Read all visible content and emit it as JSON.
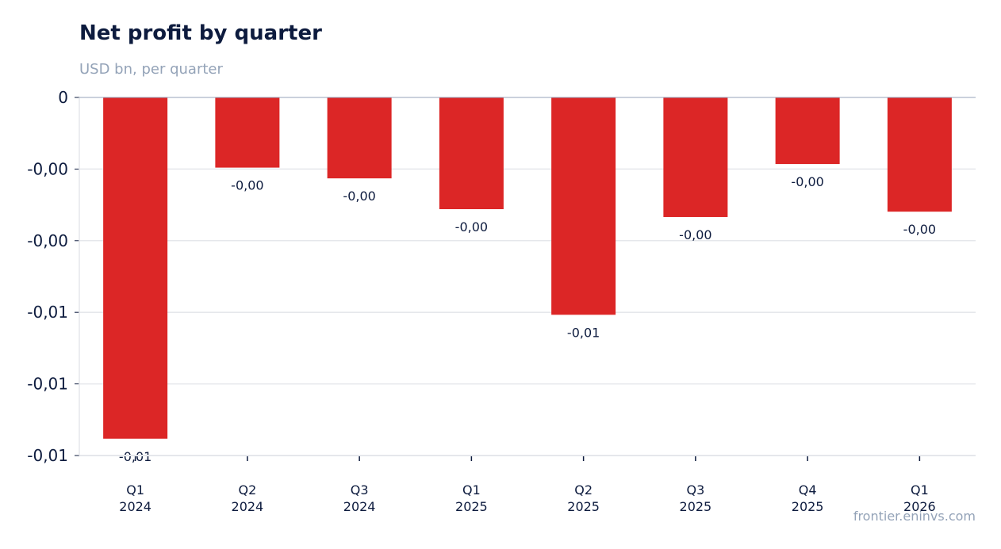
{
  "title": "Net profit by quarter",
  "subtitle": "USD bn, per quarter",
  "source": "frontier.eninvs.com",
  "colors": {
    "bar": "#dc2626",
    "title": "#0d1b3e",
    "muted": "#94a3b8",
    "grid": "#e5e7eb",
    "text": "#0d1b3e"
  },
  "chart_data": {
    "type": "bar",
    "title": "Net profit by quarter",
    "subtitle": "USD bn, per quarter",
    "xlabel": "",
    "ylabel": "",
    "categories": [
      "Q1 2024",
      "Q2 2024",
      "Q3 2024",
      "Q1 2025",
      "Q2 2025",
      "Q3 2025",
      "Q4 2025",
      "Q1 2026"
    ],
    "category_lines": [
      [
        "Q1",
        "2024"
      ],
      [
        "Q2",
        "2024"
      ],
      [
        "Q3",
        "2024"
      ],
      [
        "Q1",
        "2025"
      ],
      [
        "Q2",
        "2025"
      ],
      [
        "Q3",
        "2025"
      ],
      [
        "Q4",
        "2025"
      ],
      [
        "Q1",
        "2026"
      ]
    ],
    "values": [
      -0.00953,
      -0.00196,
      -0.00226,
      -0.00312,
      -0.00607,
      -0.00334,
      -0.00186,
      -0.00319
    ],
    "data_labels": [
      "-0,01",
      "-0,00",
      "-0,00",
      "-0,00",
      "-0,01",
      "-0,00",
      "-0,00",
      "-0,00"
    ],
    "y_ticks": [
      0,
      -0.002,
      -0.004,
      -0.006,
      -0.008,
      -0.01
    ],
    "y_tick_labels": [
      "0",
      "-0,00",
      "-0,00",
      "-0,01",
      "-0,01",
      "-0,01"
    ],
    "ylim": [
      -0.01,
      0
    ],
    "grid": true,
    "legend": "none"
  }
}
